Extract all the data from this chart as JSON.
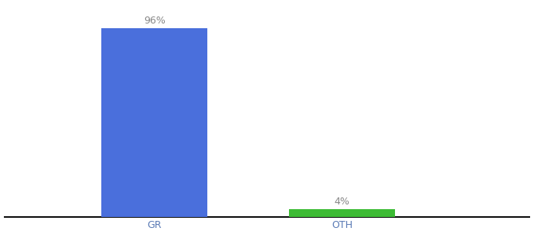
{
  "categories": [
    "GR",
    "OTH"
  ],
  "values": [
    96,
    4
  ],
  "bar_colors": [
    "#4a6fdc",
    "#3dbb35"
  ],
  "bar_labels": [
    "96%",
    "4%"
  ],
  "ylim": [
    0,
    108
  ],
  "background_color": "#ffffff",
  "label_fontsize": 9,
  "tick_fontsize": 9,
  "bar_width": 0.85,
  "bar_positions": [
    1.5,
    3.0
  ],
  "xlim": [
    0.3,
    4.5
  ],
  "axis_line_color": "#111111",
  "tick_color": "#5a7ab5",
  "label_color": "#888888"
}
